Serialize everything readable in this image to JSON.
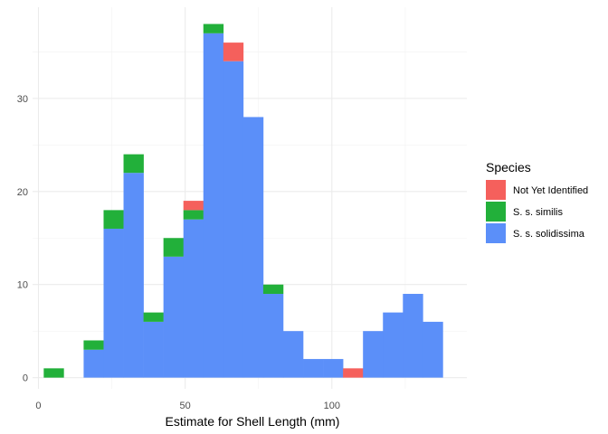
{
  "chart_data": {
    "type": "bar",
    "subtype": "stacked-histogram",
    "title": "",
    "xlabel": "Estimate for Shell Length (mm)",
    "ylabel": "",
    "xlim": [
      -2,
      146
    ],
    "ylim": [
      -1.2,
      39.8
    ],
    "x_ticks": [
      0,
      50,
      100
    ],
    "y_ticks": [
      0,
      10,
      20,
      30
    ],
    "grid": true,
    "legend_position": "right",
    "legend_title": "Species",
    "bin_width": 6.8,
    "bins": [
      {
        "start": 1.8,
        "end": 8.6,
        "counts": {
          "S. s. solidissima": 0,
          "S. s. similis": 1,
          "Not Yet Identified": 0
        }
      },
      {
        "start": 8.6,
        "end": 15.4,
        "counts": {
          "S. s. solidissima": 0,
          "S. s. similis": 0,
          "Not Yet Identified": 0
        }
      },
      {
        "start": 15.4,
        "end": 22.2,
        "counts": {
          "S. s. solidissima": 3,
          "S. s. similis": 1,
          "Not Yet Identified": 0
        }
      },
      {
        "start": 22.2,
        "end": 29.0,
        "counts": {
          "S. s. solidissima": 16,
          "S. s. similis": 2,
          "Not Yet Identified": 0
        }
      },
      {
        "start": 29.0,
        "end": 35.8,
        "counts": {
          "S. s. solidissima": 22,
          "S. s. similis": 2,
          "Not Yet Identified": 0
        }
      },
      {
        "start": 35.8,
        "end": 42.6,
        "counts": {
          "S. s. solidissima": 6,
          "S. s. similis": 1,
          "Not Yet Identified": 0
        }
      },
      {
        "start": 42.6,
        "end": 49.4,
        "counts": {
          "S. s. solidissima": 13,
          "S. s. similis": 2,
          "Not Yet Identified": 0
        }
      },
      {
        "start": 49.4,
        "end": 56.2,
        "counts": {
          "S. s. solidissima": 17,
          "S. s. similis": 1,
          "Not Yet Identified": 1
        }
      },
      {
        "start": 56.2,
        "end": 63.0,
        "counts": {
          "S. s. solidissima": 37,
          "S. s. similis": 1,
          "Not Yet Identified": 0
        }
      },
      {
        "start": 63.0,
        "end": 69.8,
        "counts": {
          "S. s. solidissima": 34,
          "S. s. similis": 0,
          "Not Yet Identified": 2
        }
      },
      {
        "start": 69.8,
        "end": 76.6,
        "counts": {
          "S. s. solidissima": 28,
          "S. s. similis": 0,
          "Not Yet Identified": 0
        }
      },
      {
        "start": 76.6,
        "end": 83.4,
        "counts": {
          "S. s. solidissima": 9,
          "S. s. similis": 1,
          "Not Yet Identified": 0
        }
      },
      {
        "start": 83.4,
        "end": 90.2,
        "counts": {
          "S. s. solidissima": 5,
          "S. s. similis": 0,
          "Not Yet Identified": 0
        }
      },
      {
        "start": 90.2,
        "end": 97.0,
        "counts": {
          "S. s. solidissima": 2,
          "S. s. similis": 0,
          "Not Yet Identified": 0
        }
      },
      {
        "start": 97.0,
        "end": 103.8,
        "counts": {
          "S. s. solidissima": 2,
          "S. s. similis": 0,
          "Not Yet Identified": 0
        }
      },
      {
        "start": 103.8,
        "end": 110.6,
        "counts": {
          "S. s. solidissima": 0,
          "S. s. similis": 0,
          "Not Yet Identified": 1
        }
      },
      {
        "start": 110.6,
        "end": 117.4,
        "counts": {
          "S. s. solidissima": 5,
          "S. s. similis": 0,
          "Not Yet Identified": 0
        }
      },
      {
        "start": 117.4,
        "end": 124.2,
        "counts": {
          "S. s. solidissima": 7,
          "S. s. similis": 0,
          "Not Yet Identified": 0
        }
      },
      {
        "start": 124.2,
        "end": 131.0,
        "counts": {
          "S. s. solidissima": 9,
          "S. s. similis": 0,
          "Not Yet Identified": 0
        }
      },
      {
        "start": 131.0,
        "end": 137.8,
        "counts": {
          "S. s. solidissima": 6,
          "S. s. similis": 0,
          "Not Yet Identified": 0
        }
      }
    ],
    "series": [
      {
        "name": "S. s. solidissima",
        "color": "#5b8ff9",
        "stack_order": 0
      },
      {
        "name": "S. s. similis",
        "color": "#22b03a",
        "stack_order": 1
      },
      {
        "name": "Not Yet Identified",
        "color": "#f5605c",
        "stack_order": 2
      }
    ],
    "legend_order": [
      "Not Yet Identified",
      "S. s. similis",
      "S. s. solidissima"
    ]
  }
}
